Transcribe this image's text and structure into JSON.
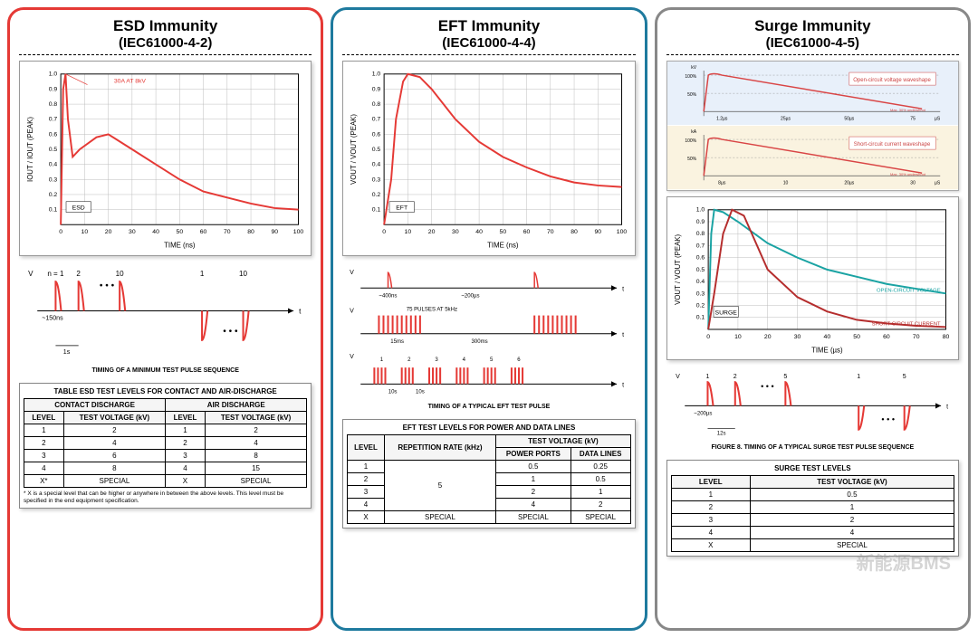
{
  "esd": {
    "title": "ESD Immunity",
    "subtitle": "(IEC61000-4-2)",
    "chart": {
      "type": "line",
      "xlabel": "TIME (ns)",
      "ylabel": "IOUT / IOUT (PEAK)",
      "xlim": [
        0,
        100
      ],
      "ylim": [
        0,
        1.0
      ],
      "xticks": [
        0,
        10,
        20,
        30,
        40,
        50,
        60,
        70,
        80,
        90,
        100
      ],
      "yticks": [
        0.1,
        0.2,
        0.3,
        0.4,
        0.5,
        0.6,
        0.7,
        0.8,
        0.9,
        1.0
      ],
      "line_color": "#e53935",
      "grid_color": "#bbb",
      "annotation": "30A AT 8kV",
      "annotation_color": "#e53935",
      "inset_label": "ESD",
      "points": [
        [
          0,
          0
        ],
        [
          1,
          0.9
        ],
        [
          2,
          1.0
        ],
        [
          3,
          0.7
        ],
        [
          5,
          0.45
        ],
        [
          8,
          0.5
        ],
        [
          15,
          0.58
        ],
        [
          20,
          0.6
        ],
        [
          30,
          0.5
        ],
        [
          40,
          0.4
        ],
        [
          50,
          0.3
        ],
        [
          60,
          0.22
        ],
        [
          70,
          0.18
        ],
        [
          80,
          0.14
        ],
        [
          90,
          0.11
        ],
        [
          100,
          0.1
        ]
      ]
    },
    "pulse": {
      "n_labels": [
        "n = 1",
        "2",
        "10",
        "1",
        "10"
      ],
      "period": "~150ns",
      "gap": "1s",
      "caption": "TIMING OF A MINIMUM TEST PULSE SEQUENCE"
    },
    "table": {
      "title": "TABLE    ESD TEST LEVELS FOR CONTACT AND AIR-DISCHARGE",
      "groups": [
        "CONTACT DISCHARGE",
        "AIR DISCHARGE"
      ],
      "headers": [
        "LEVEL",
        "TEST VOLTAGE (kV)",
        "LEVEL",
        "TEST VOLTAGE (kV)"
      ],
      "rows": [
        [
          "1",
          "2",
          "1",
          "2"
        ],
        [
          "2",
          "4",
          "2",
          "4"
        ],
        [
          "3",
          "6",
          "3",
          "8"
        ],
        [
          "4",
          "8",
          "4",
          "15"
        ],
        [
          "X*",
          "SPECIAL",
          "X",
          "SPECIAL"
        ]
      ],
      "footnote": "* X is a special level that can be higher or anywhere in between the above levels. This level must be specified in the end equipment specification."
    }
  },
  "eft": {
    "title": "EFT Immunity",
    "subtitle": "(IEC61000-4-4)",
    "chart": {
      "type": "line",
      "xlabel": "TIME (ns)",
      "ylabel": "VOUT / VOUT (PEAK)",
      "xlim": [
        0,
        100
      ],
      "ylim": [
        0,
        1.0
      ],
      "line_color": "#e53935",
      "grid_color": "#bbb",
      "inset_label": "EFT",
      "points": [
        [
          0,
          0
        ],
        [
          3,
          0.3
        ],
        [
          5,
          0.7
        ],
        [
          8,
          0.95
        ],
        [
          10,
          1.0
        ],
        [
          15,
          0.98
        ],
        [
          20,
          0.9
        ],
        [
          30,
          0.7
        ],
        [
          40,
          0.55
        ],
        [
          50,
          0.45
        ],
        [
          60,
          0.38
        ],
        [
          70,
          0.32
        ],
        [
          80,
          0.28
        ],
        [
          90,
          0.26
        ],
        [
          100,
          0.25
        ]
      ]
    },
    "pulse": {
      "single_w": "~400ns",
      "gap1": "~200µs",
      "burst_label": "75 PULSES AT 5kHz",
      "burst_w": "15ms",
      "burst_gap": "300ms",
      "pkt_w": "10s",
      "pkt_gap": "10s",
      "caption": "TIMING OF A TYPICAL EFT TEST PULSE"
    },
    "table": {
      "title": "EFT TEST LEVELS FOR POWER AND DATA LINES",
      "h1": [
        "LEVEL",
        "REPETITION RATE (kHz)",
        "TEST VOLTAGE (kV)"
      ],
      "h2": [
        "POWER PORTS",
        "DATA LINES"
      ],
      "rows": [
        [
          "1",
          "5",
          "0.5",
          "0.25"
        ],
        [
          "2",
          "",
          "1",
          "0.5"
        ],
        [
          "3",
          "",
          "2",
          "1"
        ],
        [
          "4",
          "",
          "4",
          "2"
        ],
        [
          "X",
          "SPECIAL",
          "SPECIAL",
          "SPECIAL"
        ]
      ]
    }
  },
  "surge": {
    "title": "Surge Immunity",
    "subtitle": "(IEC61000-4-5)",
    "top_charts": {
      "voltage": {
        "label": "Open-circuit voltage waveshape",
        "bg": "#e8f0fa",
        "line": "#d94545",
        "note": "Max. 30% undershoot",
        "xunit": "µS",
        "xticks": [
          "1.2µs",
          "25µs",
          "50µs",
          "75"
        ],
        "yunit": "kV",
        "yticks": [
          "50%",
          "100%"
        ]
      },
      "current": {
        "label": "Short-circuit current waveshape",
        "bg": "#faf3e0",
        "line": "#d94545",
        "note": "Max. 30% undershoot",
        "xunit": "µS",
        "xticks": [
          "8µs",
          "10",
          "20µs",
          "30"
        ],
        "yunit": "kA",
        "yticks": [
          "50%",
          "100%"
        ]
      }
    },
    "chart": {
      "type": "line",
      "xlabel": "TIME (µs)",
      "ylabel": "VOUT / VOUT (PEAK)",
      "xlim": [
        0,
        80
      ],
      "ylim": [
        0,
        1.0
      ],
      "grid_color": "#bbb",
      "series": [
        {
          "label": "OPEN-CIRCUIT VOLTAGE",
          "color": "#1aa3a3",
          "points": [
            [
              0,
              0
            ],
            [
              1,
              0.8
            ],
            [
              2,
              1.0
            ],
            [
              5,
              0.98
            ],
            [
              10,
              0.9
            ],
            [
              20,
              0.72
            ],
            [
              30,
              0.6
            ],
            [
              40,
              0.5
            ],
            [
              50,
              0.44
            ],
            [
              60,
              0.38
            ],
            [
              70,
              0.34
            ],
            [
              80,
              0.3
            ]
          ]
        },
        {
          "label": "SHORT-CIRCUIT CURRENT",
          "color": "#b52d2d",
          "points": [
            [
              0,
              0
            ],
            [
              2,
              0.3
            ],
            [
              5,
              0.8
            ],
            [
              8,
              1.0
            ],
            [
              12,
              0.95
            ],
            [
              20,
              0.5
            ],
            [
              30,
              0.27
            ],
            [
              40,
              0.15
            ],
            [
              50,
              0.08
            ],
            [
              60,
              0.05
            ],
            [
              70,
              0.03
            ],
            [
              80,
              0.02
            ]
          ]
        }
      ],
      "inset_label": "SURGE"
    },
    "pulse": {
      "n_labels": [
        "1",
        "2",
        "5",
        "1",
        "5"
      ],
      "period": "~200µs",
      "gap": "12s",
      "caption": "FIGURE 8.   TIMING OF A TYPICAL SURGE TEST PULSE SEQUENCE"
    },
    "table": {
      "title": "SURGE TEST LEVELS",
      "headers": [
        "LEVEL",
        "TEST VOLTAGE (kV)"
      ],
      "rows": [
        [
          "1",
          "0.5"
        ],
        [
          "2",
          "1"
        ],
        [
          "3",
          "2"
        ],
        [
          "4",
          "4"
        ],
        [
          "X",
          "SPECIAL"
        ]
      ]
    }
  },
  "watermark": "新能源BMS"
}
